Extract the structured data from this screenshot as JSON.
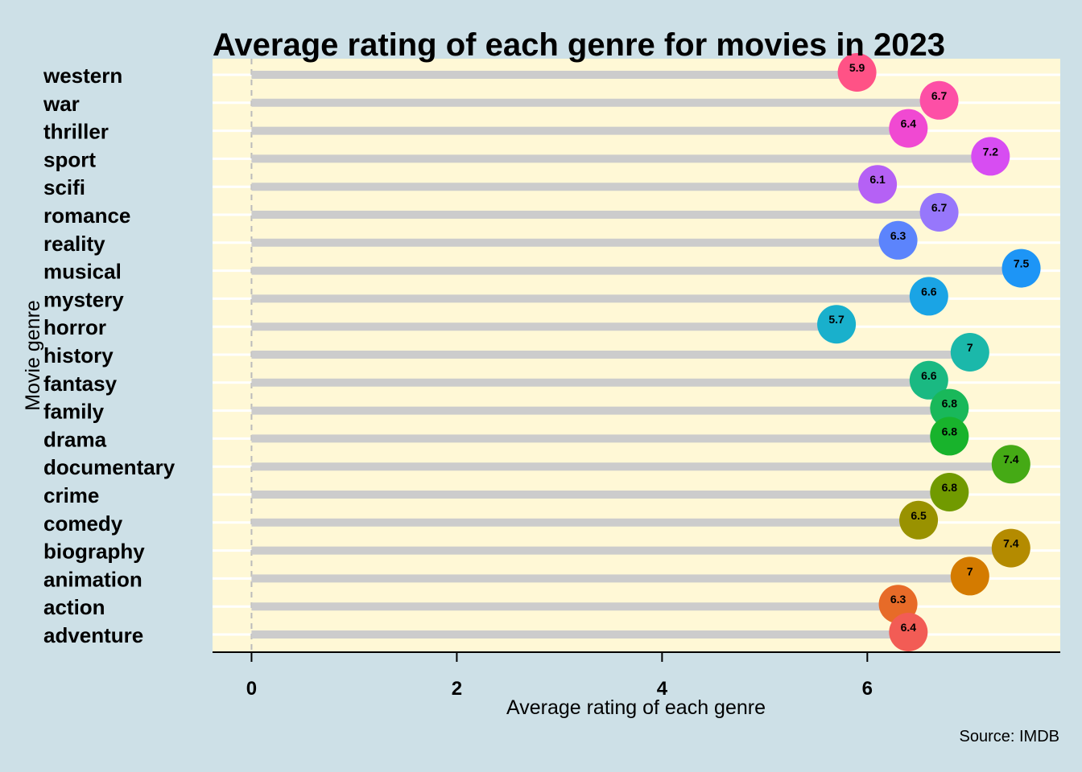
{
  "chart_data": {
    "type": "lollipop",
    "title": "Average rating of each genre for movies in 2023",
    "xlabel": "Average rating of each genre",
    "ylabel": "Movie genre",
    "caption": "Source: IMDB",
    "xlim": [
      -0.38,
      7.88
    ],
    "xticks": [
      0,
      2,
      4,
      6
    ],
    "grid": true,
    "colors": {
      "page_background": "#cde0e7",
      "panel_background": "#fff8d6",
      "stem": "#cccccc",
      "zero_line": "#bbbbbb"
    },
    "categories": [
      "western",
      "war",
      "thriller",
      "sport",
      "scifi",
      "romance",
      "reality",
      "musical",
      "mystery",
      "horror",
      "history",
      "fantasy",
      "family",
      "drama",
      "documentary",
      "crime",
      "comedy",
      "biography",
      "animation",
      "action",
      "adventure"
    ],
    "values": [
      5.9,
      6.7,
      6.4,
      7.2,
      6.1,
      6.7,
      6.3,
      7.5,
      6.6,
      5.7,
      7,
      6.6,
      6.8,
      6.8,
      7.4,
      6.8,
      6.5,
      7.4,
      7,
      6.3,
      6.4
    ],
    "point_colors": [
      "#ff5286",
      "#fd4fa6",
      "#f049d2",
      "#d74df2",
      "#b561f5",
      "#9777fb",
      "#5c84fc",
      "#1d95f6",
      "#1aa4e5",
      "#19b0cc",
      "#1bb8aa",
      "#1ab982",
      "#19b85a",
      "#18b32c",
      "#45aa15",
      "#719a00",
      "#999200",
      "#b48b00",
      "#d47b00",
      "#e76b28",
      "#f25c55"
    ]
  }
}
